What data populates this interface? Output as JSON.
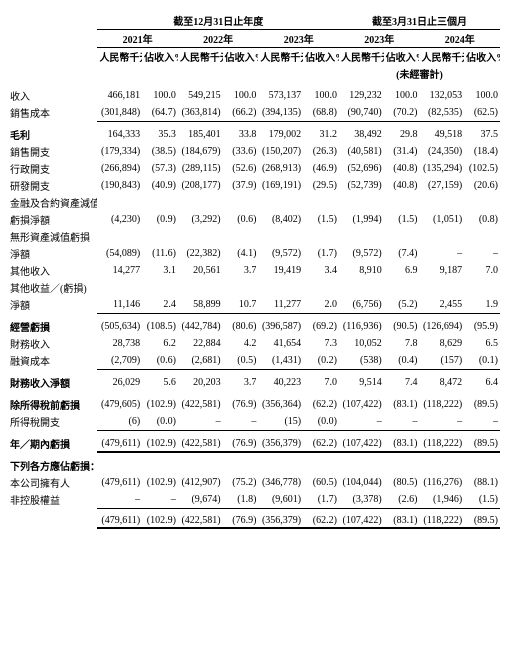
{
  "headers": {
    "period_fy": "截至12月31日止年度",
    "period_q": "截至3月31日止三個月",
    "y2021": "2021年",
    "y2022": "2022年",
    "y2023": "2023年",
    "q2023": "2023年",
    "q2024": "2024年",
    "unit_amt": "人民幣千元",
    "unit_pct": "佔收入%",
    "unaudited": "(未經審計)"
  },
  "rows": {
    "revenue": {
      "label": "收入",
      "v": [
        "466,181",
        "100.0",
        "549,215",
        "100.0",
        "573,137",
        "100.0",
        "129,232",
        "100.0",
        "132,053",
        "100.0"
      ]
    },
    "cos": {
      "label": "銷售成本",
      "v": [
        "(301,848)",
        "(64.7)",
        "(363,814)",
        "(66.2)",
        "(394,135)",
        "(68.8)",
        "(90,740)",
        "(70.2)",
        "(82,535)",
        "(62.5)"
      ]
    },
    "gp": {
      "label": "毛利",
      "v": [
        "164,333",
        "35.3",
        "185,401",
        "33.8",
        "179,002",
        "31.2",
        "38,492",
        "29.8",
        "49,518",
        "37.5"
      ]
    },
    "selling": {
      "label": "銷售開支",
      "v": [
        "(179,334)",
        "(38.5)",
        "(184,679)",
        "(33.6)",
        "(150,207)",
        "(26.3)",
        "(40,581)",
        "(31.4)",
        "(24,350)",
        "(18.4)"
      ]
    },
    "admin": {
      "label": "行政開支",
      "v": [
        "(266,894)",
        "(57.3)",
        "(289,115)",
        "(52.6)",
        "(268,913)",
        "(46.9)",
        "(52,696)",
        "(40.8)",
        "(135,294)",
        "(102.5)"
      ]
    },
    "rd": {
      "label": "研發開支",
      "v": [
        "(190,843)",
        "(40.9)",
        "(208,177)",
        "(37.9)",
        "(169,191)",
        "(29.5)",
        "(52,739)",
        "(40.8)",
        "(27,159)",
        "(20.6)"
      ]
    },
    "fin_impair_lbl": {
      "label": "金融及合約資產減值"
    },
    "fin_impair": {
      "label": "虧損淨額",
      "v": [
        "(4,230)",
        "(0.9)",
        "(3,292)",
        "(0.6)",
        "(8,402)",
        "(1.5)",
        "(1,994)",
        "(1.5)",
        "(1,051)",
        "(0.8)"
      ]
    },
    "intang_lbl": {
      "label": "無形資產減值虧損"
    },
    "intang": {
      "label": "淨額",
      "v": [
        "(54,089)",
        "(11.6)",
        "(22,382)",
        "(4.1)",
        "(9,572)",
        "(1.7)",
        "(9,572)",
        "(7.4)",
        "–",
        "–"
      ]
    },
    "other_inc": {
      "label": "其他收入",
      "v": [
        "14,277",
        "3.1",
        "20,561",
        "3.7",
        "19,419",
        "3.4",
        "8,910",
        "6.9",
        "9,187",
        "7.0"
      ]
    },
    "other_gl_lbl": {
      "label": "其他收益／(虧損)"
    },
    "other_gl": {
      "label": "淨額",
      "v": [
        "11,146",
        "2.4",
        "58,899",
        "10.7",
        "11,277",
        "2.0",
        "(6,756)",
        "(5.2)",
        "2,455",
        "1.9"
      ]
    },
    "op_loss": {
      "label": "經營虧損",
      "v": [
        "(505,634)",
        "(108.5)",
        "(442,784)",
        "(80.6)",
        "(396,587)",
        "(69.2)",
        "(116,936)",
        "(90.5)",
        "(126,694)",
        "(95.9)"
      ]
    },
    "fin_inc": {
      "label": "財務收入",
      "v": [
        "28,738",
        "6.2",
        "22,884",
        "4.2",
        "41,654",
        "7.3",
        "10,052",
        "7.8",
        "8,629",
        "6.5"
      ]
    },
    "fin_cost": {
      "label": "融資成本",
      "v": [
        "(2,709)",
        "(0.6)",
        "(2,681)",
        "(0.5)",
        "(1,431)",
        "(0.2)",
        "(538)",
        "(0.4)",
        "(157)",
        "(0.1)"
      ]
    },
    "fin_net": {
      "label": "財務收入淨額",
      "v": [
        "26,029",
        "5.6",
        "20,203",
        "3.7",
        "40,223",
        "7.0",
        "9,514",
        "7.4",
        "8,472",
        "6.4"
      ]
    },
    "pbt": {
      "label": "除所得稅前虧損",
      "v": [
        "(479,605)",
        "(102.9)",
        "(422,581)",
        "(76.9)",
        "(356,364)",
        "(62.2)",
        "(107,422)",
        "(83.1)",
        "(118,222)",
        "(89.5)"
      ]
    },
    "tax": {
      "label": "所得稅開支",
      "v": [
        "(6)",
        "(0.0)",
        "–",
        "–",
        "(15)",
        "(0.0)",
        "–",
        "–",
        "–",
        "–"
      ]
    },
    "net_loss": {
      "label": "年／期內虧損",
      "v": [
        "(479,611)",
        "(102.9)",
        "(422,581)",
        "(76.9)",
        "(356,379)",
        "(62.2)",
        "(107,422)",
        "(83.1)",
        "(118,222)",
        "(89.5)"
      ]
    },
    "attrib_hdr": {
      "label": "下列各方應佔虧損："
    },
    "owners": {
      "label": "本公司擁有人",
      "v": [
        "(479,611)",
        "(102.9)",
        "(412,907)",
        "(75.2)",
        "(346,778)",
        "(60.5)",
        "(104,044)",
        "(80.5)",
        "(116,276)",
        "(88.1)"
      ]
    },
    "nci": {
      "label": "非控股權益",
      "v": [
        "–",
        "–",
        "(9,674)",
        "(1.8)",
        "(9,601)",
        "(1.7)",
        "(3,378)",
        "(2.6)",
        "(1,946)",
        "(1.5)"
      ]
    },
    "total": {
      "label": "",
      "v": [
        "(479,611)",
        "(102.9)",
        "(422,581)",
        "(76.9)",
        "(356,379)",
        "(62.2)",
        "(107,422)",
        "(83.1)",
        "(118,222)",
        "(89.5)"
      ]
    }
  }
}
